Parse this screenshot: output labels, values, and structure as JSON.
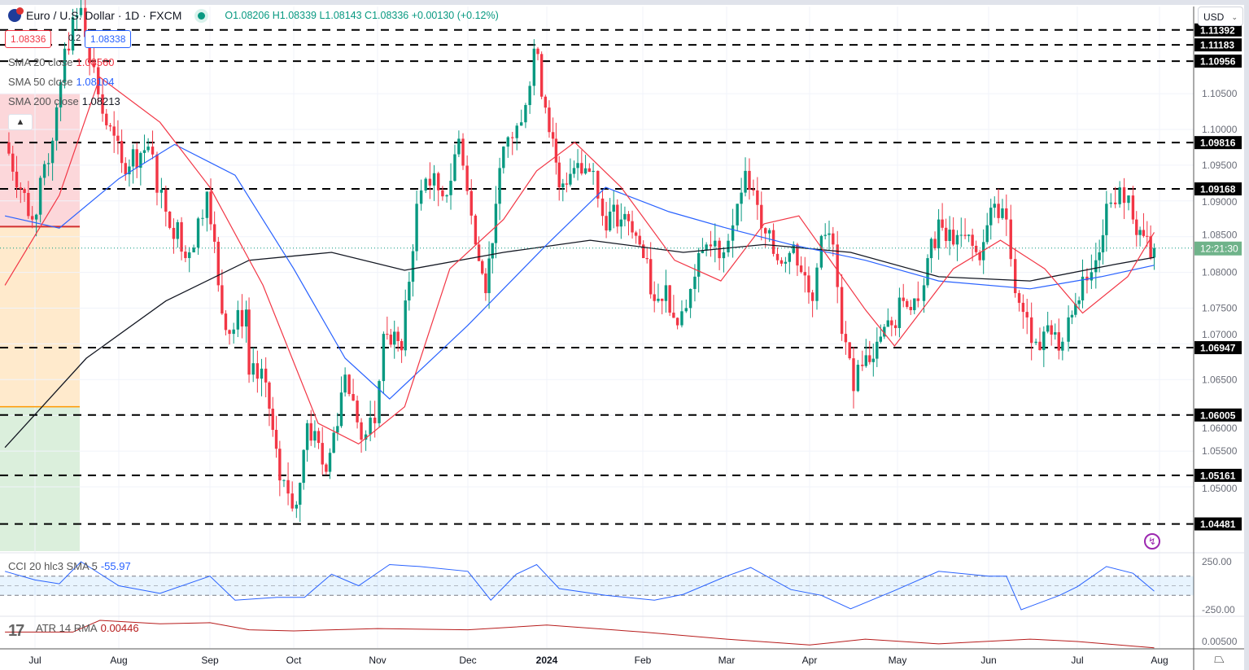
{
  "header": {
    "symbol_title": "Euro / U.S. Dollar · 1D · FXCM",
    "ohlc": "O1.08206 H1.08339 L1.08143 C1.08336 +0.00130 (+0.12%)",
    "sell_price": "1.08336",
    "spread": "0.2",
    "buy_price": "1.08338",
    "currency": "USD"
  },
  "indicators": {
    "sma20": {
      "label": "SMA 20 close",
      "value": "1.08560",
      "color": "#f23645"
    },
    "sma50": {
      "label": "SMA 50 close",
      "value": "1.08104",
      "color": "#2962ff"
    },
    "sma200": {
      "label": "SMA 200 close",
      "value": "1.08213",
      "color": "#131722"
    },
    "cci": {
      "label": "CCI 20 hlc3 SMA 5",
      "value": "-55.97",
      "color": "#2962ff"
    },
    "atr": {
      "label": "ATR 14 RMA",
      "value": "0.00446",
      "color": "#b71c1c"
    }
  },
  "price_axis": {
    "ticks": [
      "1.10500",
      "1.10000",
      "1.09500",
      "1.09000",
      "1.08500",
      "1.08000",
      "1.07500",
      "1.07000",
      "1.06500",
      "1.06000",
      "1.05500",
      "1.05000"
    ],
    "countdown": "12:21:30",
    "cci_ticks": [
      "250.00",
      "-250.00"
    ],
    "atr_ticks": [
      "0.00500"
    ]
  },
  "time_axis": [
    "Jul",
    "Aug",
    "Sep",
    "Oct",
    "Nov",
    "Dec",
    "2024",
    "Feb",
    "Mar",
    "Apr",
    "May",
    "Jun",
    "Jul",
    "Aug"
  ],
  "chart_data": {
    "type": "candlestick",
    "ylim": [
      1.043,
      1.1185
    ],
    "levels": [
      "1.11392",
      "1.11183",
      "1.10956",
      "1.09816",
      "1.09168",
      "1.06947",
      "1.06005",
      "1.05161",
      "1.04481"
    ],
    "position_tool": {
      "entry": 1.0864,
      "stop": 1.105,
      "target": 1.0612
    },
    "closes": [
      [
        "2023-06-20",
        1.0982
      ],
      [
        "2023-06-30",
        1.0874
      ],
      [
        "2023-07-06",
        1.0953
      ],
      [
        "2023-07-12",
        1.1113
      ],
      [
        "2023-07-18",
        1.117
      ],
      [
        "2023-07-26",
        1.1022
      ],
      [
        "2023-08-02",
        1.0953
      ],
      [
        "2023-08-11",
        1.0976
      ],
      [
        "2023-08-17",
        1.0885
      ],
      [
        "2023-08-25",
        1.0828
      ],
      [
        "2023-08-31",
        1.0913
      ],
      [
        "2023-09-04",
        1.0782
      ],
      [
        "2023-09-08",
        1.0714
      ],
      [
        "2023-09-14",
        1.0748
      ],
      [
        "2023-09-15",
        1.0657
      ],
      [
        "2023-09-21",
        1.0646
      ],
      [
        "2023-09-26",
        1.0509
      ],
      [
        "2023-10-02",
        1.0475
      ],
      [
        "2023-10-06",
        1.0589
      ],
      [
        "2023-10-13",
        1.0521
      ],
      [
        "2023-10-20",
        1.0657
      ],
      [
        "2023-10-26",
        1.0566
      ],
      [
        "2023-10-31",
        1.0589
      ],
      [
        "2023-11-03",
        1.0714
      ],
      [
        "2023-11-09",
        1.0691
      ],
      [
        "2023-11-14",
        1.0896
      ],
      [
        "2023-11-17",
        1.0931
      ],
      [
        "2023-11-24",
        1.0908
      ],
      [
        "2023-11-28",
        1.0987
      ],
      [
        "2023-12-04",
        1.0839
      ],
      [
        "2023-12-08",
        1.0771
      ],
      [
        "2023-12-12",
        1.0896
      ],
      [
        "2023-12-15",
        1.0976
      ],
      [
        "2023-12-22",
        1.101
      ],
      [
        "2023-12-27",
        1.1113
      ],
      [
        "2024-01-03",
        1.0987
      ],
      [
        "2024-01-05",
        1.0919
      ],
      [
        "2024-01-11",
        1.0953
      ],
      [
        "2024-01-16",
        1.0942
      ],
      [
        "2024-01-19",
        1.0879
      ],
      [
        "2024-01-25",
        1.0874
      ],
      [
        "2024-01-31",
        1.0839
      ],
      [
        "2024-02-05",
        1.076
      ],
      [
        "2024-02-09",
        1.0782
      ],
      [
        "2024-02-13",
        1.0726
      ],
      [
        "2024-02-19",
        1.0794
      ],
      [
        "2024-02-23",
        1.0839
      ],
      [
        "2024-02-29",
        1.0828
      ],
      [
        "2024-03-05",
        1.0896
      ],
      [
        "2024-03-08",
        1.0942
      ],
      [
        "2024-03-14",
        1.0862
      ],
      [
        "2024-03-20",
        1.0817
      ],
      [
        "2024-03-26",
        1.0839
      ],
      [
        "2024-04-02",
        1.076
      ],
      [
        "2024-04-05",
        1.0851
      ],
      [
        "2024-04-09",
        1.0839
      ],
      [
        "2024-04-12",
        1.0714
      ],
      [
        "2024-04-16",
        1.0634
      ],
      [
        "2024-04-19",
        1.0669
      ],
      [
        "2024-04-24",
        1.0703
      ],
      [
        "2024-04-29",
        1.0726
      ],
      [
        "2024-05-03",
        1.076
      ],
      [
        "2024-05-08",
        1.076
      ],
      [
        "2024-05-10",
        1.0782
      ],
      [
        "2024-05-15",
        1.0874
      ],
      [
        "2024-05-20",
        1.0839
      ],
      [
        "2024-05-24",
        1.0851
      ],
      [
        "2024-05-29",
        1.0817
      ],
      [
        "2024-06-03",
        1.0896
      ],
      [
        "2024-06-07",
        1.0874
      ],
      [
        "2024-06-10",
        1.0771
      ],
      [
        "2024-06-14",
        1.0737
      ],
      [
        "2024-06-17",
        1.0703
      ],
      [
        "2024-06-21",
        1.0726
      ],
      [
        "2024-06-26",
        1.0703
      ],
      [
        "2024-06-28",
        1.0737
      ],
      [
        "2024-07-03",
        1.0794
      ],
      [
        "2024-07-08",
        1.0817
      ],
      [
        "2024-07-12",
        1.0896
      ],
      [
        "2024-07-17",
        1.0919
      ],
      [
        "2024-07-22",
        1.0874
      ],
      [
        "2024-07-26",
        1.0851
      ],
      [
        "2024-07-30",
        1.0834
      ]
    ],
    "sma20": [
      [
        "2023-06-20",
        1.0782
      ],
      [
        "2023-07-10",
        1.0908
      ],
      [
        "2023-07-25",
        1.1073
      ],
      [
        "2023-08-15",
        1.101
      ],
      [
        "2023-09-01",
        1.0919
      ],
      [
        "2023-09-20",
        1.0782
      ],
      [
        "2023-10-10",
        1.0589
      ],
      [
        "2023-10-25",
        1.056
      ],
      [
        "2023-11-10",
        1.0612
      ],
      [
        "2023-11-25",
        1.0805
      ],
      [
        "2023-12-15",
        1.0874
      ],
      [
        "2023-12-28",
        1.0942
      ],
      [
        "2024-01-10",
        1.0982
      ],
      [
        "2024-01-25",
        1.0919
      ],
      [
        "2024-02-12",
        1.0817
      ],
      [
        "2024-02-28",
        1.0788
      ],
      [
        "2024-03-15",
        1.0868
      ],
      [
        "2024-03-28",
        1.0879
      ],
      [
        "2024-04-20",
        1.0748
      ],
      [
        "2024-04-30",
        1.0697
      ],
      [
        "2024-05-20",
        1.0805
      ],
      [
        "2024-06-05",
        1.0845
      ],
      [
        "2024-06-20",
        1.0805
      ],
      [
        "2024-07-03",
        1.0743
      ],
      [
        "2024-07-20",
        1.0794
      ],
      [
        "2024-07-30",
        1.0856
      ]
    ],
    "sma50": [
      [
        "2023-06-20",
        1.0879
      ],
      [
        "2023-07-10",
        1.0862
      ],
      [
        "2023-08-01",
        1.0931
      ],
      [
        "2023-08-20",
        1.0979
      ],
      [
        "2023-09-10",
        1.0936
      ],
      [
        "2023-10-01",
        1.0805
      ],
      [
        "2023-10-20",
        1.068
      ],
      [
        "2023-11-05",
        1.0623
      ],
      [
        "2023-12-01",
        1.0726
      ],
      [
        "2024-01-01",
        1.0839
      ],
      [
        "2024-01-20",
        1.0919
      ],
      [
        "2024-02-10",
        1.0885
      ],
      [
        "2024-03-01",
        1.0862
      ],
      [
        "2024-03-25",
        1.0839
      ],
      [
        "2024-04-20",
        1.0817
      ],
      [
        "2024-05-15",
        1.0788
      ],
      [
        "2024-06-15",
        1.0777
      ],
      [
        "2024-07-10",
        1.0794
      ],
      [
        "2024-07-30",
        1.081
      ]
    ],
    "sma200": [
      [
        "2023-06-20",
        1.0555
      ],
      [
        "2023-07-20",
        1.068
      ],
      [
        "2023-08-17",
        1.076
      ],
      [
        "2023-09-15",
        1.0817
      ],
      [
        "2023-10-15",
        1.0828
      ],
      [
        "2023-11-10",
        1.0803
      ],
      [
        "2023-12-15",
        1.0828
      ],
      [
        "2024-01-15",
        1.0845
      ],
      [
        "2024-02-15",
        1.0828
      ],
      [
        "2024-03-15",
        1.0839
      ],
      [
        "2024-04-15",
        1.0828
      ],
      [
        "2024-05-15",
        1.0794
      ],
      [
        "2024-06-15",
        1.0788
      ],
      [
        "2024-07-15",
        1.0811
      ],
      [
        "2024-07-30",
        1.0821
      ]
    ],
    "cci": [
      [
        "2023-06-20",
        150
      ],
      [
        "2023-07-01",
        60
      ],
      [
        "2023-07-10",
        20
      ],
      [
        "2023-07-18",
        250
      ],
      [
        "2023-08-01",
        0
      ],
      [
        "2023-08-15",
        -80
      ],
      [
        "2023-09-01",
        100
      ],
      [
        "2023-09-10",
        -150
      ],
      [
        "2023-09-25",
        -120
      ],
      [
        "2023-10-05",
        -120
      ],
      [
        "2023-10-15",
        120
      ],
      [
        "2023-10-25",
        0
      ],
      [
        "2023-11-05",
        220
      ],
      [
        "2023-11-15",
        200
      ],
      [
        "2023-12-01",
        150
      ],
      [
        "2023-12-10",
        -150
      ],
      [
        "2023-12-20",
        120
      ],
      [
        "2023-12-28",
        220
      ],
      [
        "2024-01-05",
        -30
      ],
      [
        "2024-01-20",
        -100
      ],
      [
        "2024-02-05",
        -150
      ],
      [
        "2024-02-15",
        -90
      ],
      [
        "2024-03-01",
        100
      ],
      [
        "2024-03-10",
        190
      ],
      [
        "2024-03-25",
        -40
      ],
      [
        "2024-04-05",
        -100
      ],
      [
        "2024-04-15",
        -240
      ],
      [
        "2024-04-30",
        -50
      ],
      [
        "2024-05-15",
        150
      ],
      [
        "2024-06-01",
        100
      ],
      [
        "2024-06-07",
        100
      ],
      [
        "2024-06-12",
        -250
      ],
      [
        "2024-06-25",
        -100
      ],
      [
        "2024-07-01",
        -10
      ],
      [
        "2024-07-12",
        200
      ],
      [
        "2024-07-22",
        130
      ],
      [
        "2024-07-30",
        -56
      ]
    ],
    "atr": [
      [
        "2023-06-20",
        0.0058
      ],
      [
        "2023-07-15",
        0.0058
      ],
      [
        "2023-07-25",
        0.0068
      ],
      [
        "2023-08-15",
        0.0065
      ],
      [
        "2023-09-01",
        0.0066
      ],
      [
        "2023-09-15",
        0.006
      ],
      [
        "2023-10-01",
        0.0059
      ],
      [
        "2023-11-01",
        0.0061
      ],
      [
        "2023-12-01",
        0.006
      ],
      [
        "2024-01-01",
        0.0064
      ],
      [
        "2024-02-01",
        0.0058
      ],
      [
        "2024-03-01",
        0.0052
      ],
      [
        "2024-04-01",
        0.0047
      ],
      [
        "2024-04-20",
        0.0052
      ],
      [
        "2024-05-15",
        0.0048
      ],
      [
        "2024-06-15",
        0.0052
      ],
      [
        "2024-07-01",
        0.005
      ],
      [
        "2024-07-30",
        0.00446
      ]
    ],
    "colors": {
      "up": "#089981",
      "down": "#f23645",
      "level": "#000000"
    }
  }
}
